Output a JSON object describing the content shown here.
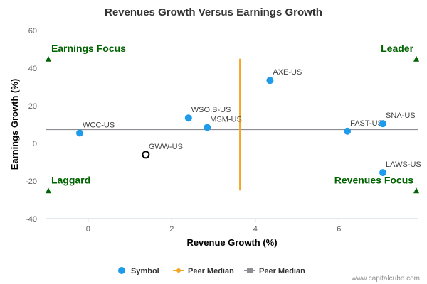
{
  "chart_data": {
    "type": "scatter",
    "title": "Revenues Growth Versus Earnings Growth",
    "xlabel": "Revenue Growth (%)",
    "ylabel": "Earnings Growth (%)",
    "xlim": [
      -1,
      7.9
    ],
    "ylim": [
      -40,
      60
    ],
    "xticks": [
      0,
      2,
      4,
      6
    ],
    "yticks": [
      -40,
      -20,
      0,
      20,
      40,
      60
    ],
    "grid": false,
    "legend_position": "bottom",
    "series": [
      {
        "name": "Symbol",
        "color": "#1e9bea",
        "points": [
          {
            "label": "WCC-US",
            "x": -0.2,
            "y": 5.5
          },
          {
            "label": "WSO.B-US",
            "x": 2.4,
            "y": 13.5
          },
          {
            "label": "MSM-US",
            "x": 2.85,
            "y": 8.5
          },
          {
            "label": "AXE-US",
            "x": 4.35,
            "y": 33.5
          },
          {
            "label": "FAST-US",
            "x": 6.2,
            "y": 6.5
          },
          {
            "label": "SNA-US",
            "x": 7.05,
            "y": 10.5
          },
          {
            "label": "LAWS-US",
            "x": 7.05,
            "y": -15.5
          }
        ]
      }
    ],
    "highlight_point": {
      "label": "GWW-US",
      "x": 1.38,
      "y": -6,
      "color": "#000000"
    },
    "peer_median_x": {
      "name": "Peer Median",
      "value": 3.63,
      "y_range": [
        -25,
        45
      ],
      "color": "#f5a623"
    },
    "peer_median_y": {
      "name": "Peer Median",
      "value": 7.5,
      "color": "#8d8d93"
    },
    "quadrant_labels": [
      {
        "text": "Earnings Focus",
        "x": -0.95,
        "y": 45,
        "anchor": "start"
      },
      {
        "text": "Leader",
        "x": 7.85,
        "y": 45,
        "anchor": "end"
      },
      {
        "text": "Laggard",
        "x": -0.95,
        "y": -25,
        "anchor": "start"
      },
      {
        "text": "Revenues Focus",
        "x": 7.85,
        "y": -25,
        "anchor": "end"
      }
    ],
    "quadrant_color": "#006400"
  },
  "legend": [
    {
      "label": "Symbol",
      "marker": "circle",
      "color": "#1e9bea"
    },
    {
      "label": "Peer Median",
      "marker": "diamond-line",
      "color": "#f5a623"
    },
    {
      "label": "Peer Median",
      "marker": "square-line",
      "color": "#8d8d93"
    }
  ],
  "credit": "www.capitalcube.com"
}
